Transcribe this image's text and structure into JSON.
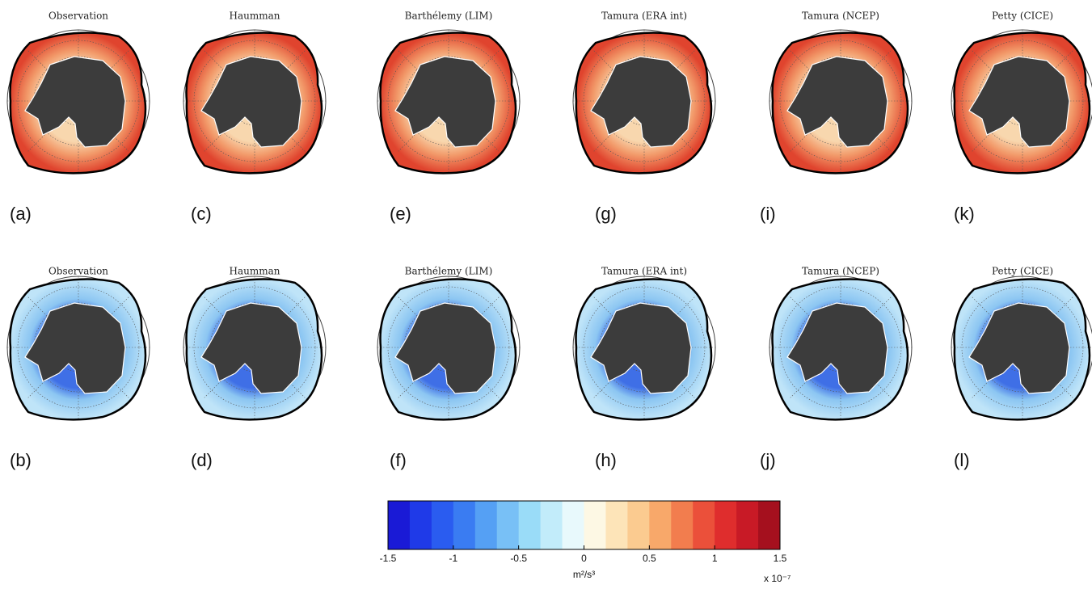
{
  "rows": [
    [
      {
        "title": "Observation",
        "label": "(a)"
      },
      {
        "title": "Haumman",
        "label": "(c)"
      },
      {
        "title": "Barthélemy (LIM)",
        "label": "(e)"
      },
      {
        "title": "Tamura (ERA int)",
        "label": "(g)"
      },
      {
        "title": "Tamura (NCEP)",
        "label": "(i)"
      },
      {
        "title": "Petty (CICE)",
        "label": "(k)"
      }
    ],
    [
      {
        "title": "Observation",
        "label": "(b)"
      },
      {
        "title": "Haumman",
        "label": "(d)"
      },
      {
        "title": "Barthélemy (LIM)",
        "label": "(f)"
      },
      {
        "title": "Tamura (ERA int)",
        "label": "(h)"
      },
      {
        "title": "Tamura (NCEP)",
        "label": "(j)"
      },
      {
        "title": "Petty (CICE)",
        "label": "(l)"
      }
    ]
  ],
  "colorbar": {
    "lim": [
      -1.5,
      1.5
    ],
    "ticks": [
      -1.5,
      -1,
      -0.5,
      0,
      0.5,
      1,
      1.5
    ],
    "colors": [
      "#1a1ad6",
      "#1f3ae8",
      "#2a5cf0",
      "#3a7cf2",
      "#55a0f4",
      "#78c0f6",
      "#9adcf8",
      "#c2ecfa",
      "#e8f9fc",
      "#fdf8e4",
      "#fde4b8",
      "#fbcb90",
      "#f8a86a",
      "#f27d4e",
      "#eb503a",
      "#df2d2d",
      "#c81a26",
      "#a5101e"
    ],
    "unit": "m²/s³",
    "scale": "x 10⁻⁷"
  }
}
